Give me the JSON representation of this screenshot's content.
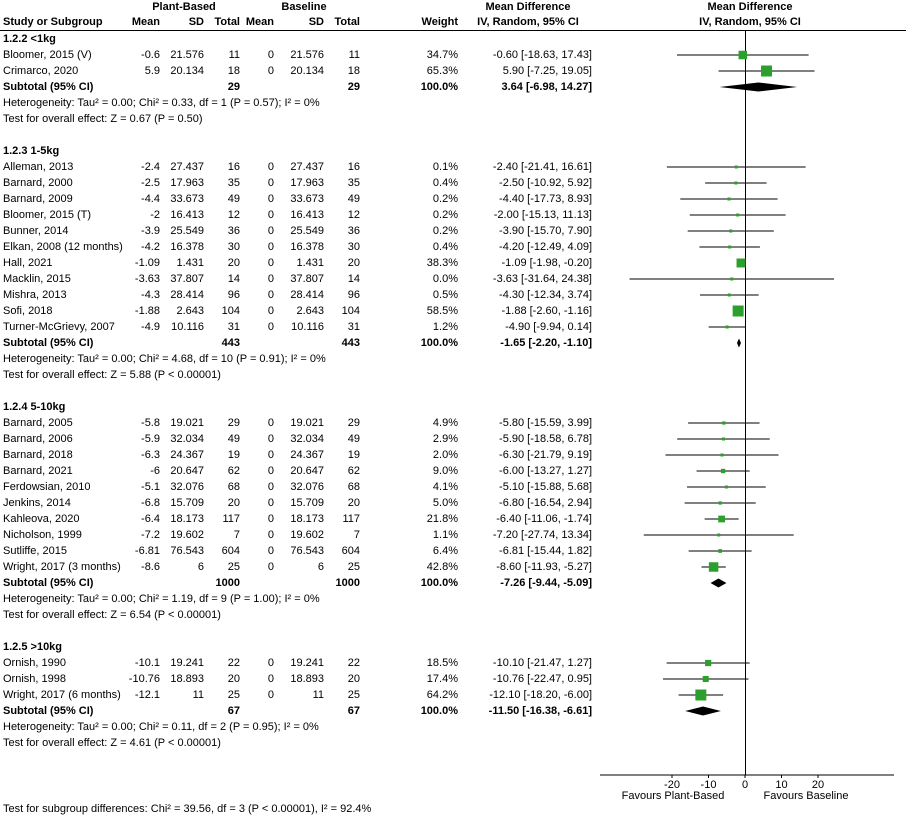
{
  "header": {
    "col_study": "Study or Subgroup",
    "group1": "Plant-Based",
    "group2": "Baseline",
    "col_mean": "Mean",
    "col_sd": "SD",
    "col_total": "Total",
    "col_weight": "Weight",
    "md_title": "Mean Difference",
    "md_sub": "IV, Random, 95% CI"
  },
  "footer": {
    "subgroup_differences": "Test for subgroup differences: Chi² = 39.56, df = 3 (P < 0.00001), I² = 92.4%"
  },
  "chart_data": {
    "type": "forest",
    "effect_measure": "Mean Difference, IV, Random, 95% CI",
    "axis": {
      "ticks": [
        -20,
        -10,
        0,
        10,
        20
      ],
      "min": -40,
      "max": 40
    },
    "favours_left": "Favours Plant-Based",
    "favours_right": "Favours Baseline",
    "colors": {
      "marker": "#2ca02c",
      "diamond": "#000000",
      "line": "#000000"
    },
    "subgroups": [
      {
        "label": "1.2.2 <1kg",
        "studies": [
          {
            "name": "Bloomer, 2015 (V)",
            "mean": "-0.6",
            "sd": "21.576",
            "total": "11",
            "b_mean": "0",
            "b_sd": "21.576",
            "b_total": "11",
            "weight": "34.7%",
            "weight_pct": 34.7,
            "md": -0.6,
            "ci_lo": -18.63,
            "ci_hi": 17.43,
            "ci_text": "-0.60 [-18.63, 17.43]"
          },
          {
            "name": "Crimarco, 2020",
            "mean": "5.9",
            "sd": "20.134",
            "total": "18",
            "b_mean": "0",
            "b_sd": "20.134",
            "b_total": "18",
            "weight": "65.3%",
            "weight_pct": 65.3,
            "md": 5.9,
            "ci_lo": -7.25,
            "ci_hi": 19.05,
            "ci_text": "5.90 [-7.25, 19.05]"
          }
        ],
        "subtotal": {
          "label": "Subtotal (95% CI)",
          "total": "29",
          "b_total": "29",
          "weight": "100.0%",
          "md": 3.64,
          "ci_lo": -6.98,
          "ci_hi": 14.27,
          "ci_text": "3.64 [-6.98, 14.27]"
        },
        "heterogeneity": "Heterogeneity: Tau² = 0.00; Chi² = 0.33, df = 1 (P = 0.57); I² = 0%",
        "overall_effect": "Test for overall effect: Z = 0.67 (P = 0.50)"
      },
      {
        "label": "1.2.3 1-5kg",
        "studies": [
          {
            "name": "Alleman, 2013",
            "mean": "-2.4",
            "sd": "27.437",
            "total": "16",
            "b_mean": "0",
            "b_sd": "27.437",
            "b_total": "16",
            "weight": "0.1%",
            "weight_pct": 0.1,
            "md": -2.4,
            "ci_lo": -21.41,
            "ci_hi": 16.61,
            "ci_text": "-2.40 [-21.41, 16.61]"
          },
          {
            "name": "Barnard, 2000",
            "mean": "-2.5",
            "sd": "17.963",
            "total": "35",
            "b_mean": "0",
            "b_sd": "17.963",
            "b_total": "35",
            "weight": "0.4%",
            "weight_pct": 0.4,
            "md": -2.5,
            "ci_lo": -10.92,
            "ci_hi": 5.92,
            "ci_text": "-2.50 [-10.92, 5.92]"
          },
          {
            "name": "Barnard, 2009",
            "mean": "-4.4",
            "sd": "33.673",
            "total": "49",
            "b_mean": "0",
            "b_sd": "33.673",
            "b_total": "49",
            "weight": "0.2%",
            "weight_pct": 0.2,
            "md": -4.4,
            "ci_lo": -17.73,
            "ci_hi": 8.93,
            "ci_text": "-4.40 [-17.73, 8.93]"
          },
          {
            "name": "Bloomer, 2015 (T)",
            "mean": "-2",
            "sd": "16.413",
            "total": "12",
            "b_mean": "0",
            "b_sd": "16.413",
            "b_total": "12",
            "weight": "0.2%",
            "weight_pct": 0.2,
            "md": -2.0,
            "ci_lo": -15.13,
            "ci_hi": 11.13,
            "ci_text": "-2.00 [-15.13, 11.13]"
          },
          {
            "name": "Bunner, 2014",
            "mean": "-3.9",
            "sd": "25.549",
            "total": "36",
            "b_mean": "0",
            "b_sd": "25.549",
            "b_total": "36",
            "weight": "0.2%",
            "weight_pct": 0.2,
            "md": -3.9,
            "ci_lo": -15.7,
            "ci_hi": 7.9,
            "ci_text": "-3.90 [-15.70, 7.90]"
          },
          {
            "name": "Elkan, 2008 (12 months)",
            "mean": "-4.2",
            "sd": "16.378",
            "total": "30",
            "b_mean": "0",
            "b_sd": "16.378",
            "b_total": "30",
            "weight": "0.4%",
            "weight_pct": 0.4,
            "md": -4.2,
            "ci_lo": -12.49,
            "ci_hi": 4.09,
            "ci_text": "-4.20 [-12.49, 4.09]"
          },
          {
            "name": "Hall, 2021",
            "mean": "-1.09",
            "sd": "1.431",
            "total": "20",
            "b_mean": "0",
            "b_sd": "1.431",
            "b_total": "20",
            "weight": "38.3%",
            "weight_pct": 38.3,
            "md": -1.09,
            "ci_lo": -1.98,
            "ci_hi": -0.2,
            "ci_text": "-1.09 [-1.98, -0.20]"
          },
          {
            "name": "Macklin, 2015",
            "mean": "-3.63",
            "sd": "37.807",
            "total": "14",
            "b_mean": "0",
            "b_sd": "37.807",
            "b_total": "14",
            "weight": "0.0%",
            "weight_pct": 0.0,
            "md": -3.63,
            "ci_lo": -31.64,
            "ci_hi": 24.38,
            "ci_text": "-3.63 [-31.64, 24.38]"
          },
          {
            "name": "Mishra, 2013",
            "mean": "-4.3",
            "sd": "28.414",
            "total": "96",
            "b_mean": "0",
            "b_sd": "28.414",
            "b_total": "96",
            "weight": "0.5%",
            "weight_pct": 0.5,
            "md": -4.3,
            "ci_lo": -12.34,
            "ci_hi": 3.74,
            "ci_text": "-4.30 [-12.34, 3.74]"
          },
          {
            "name": "Sofi, 2018",
            "mean": "-1.88",
            "sd": "2.643",
            "total": "104",
            "b_mean": "0",
            "b_sd": "2.643",
            "b_total": "104",
            "weight": "58.5%",
            "weight_pct": 58.5,
            "md": -1.88,
            "ci_lo": -2.6,
            "ci_hi": -1.16,
            "ci_text": "-1.88 [-2.60, -1.16]"
          },
          {
            "name": "Turner-McGrievy, 2007",
            "mean": "-4.9",
            "sd": "10.116",
            "total": "31",
            "b_mean": "0",
            "b_sd": "10.116",
            "b_total": "31",
            "weight": "1.2%",
            "weight_pct": 1.2,
            "md": -4.9,
            "ci_lo": -9.94,
            "ci_hi": 0.14,
            "ci_text": "-4.90 [-9.94, 0.14]"
          }
        ],
        "subtotal": {
          "label": "Subtotal (95% CI)",
          "total": "443",
          "b_total": "443",
          "weight": "100.0%",
          "md": -1.65,
          "ci_lo": -2.2,
          "ci_hi": -1.1,
          "ci_text": "-1.65 [-2.20, -1.10]"
        },
        "heterogeneity": "Heterogeneity: Tau² = 0.00; Chi² = 4.68, df = 10 (P = 0.91); I² = 0%",
        "overall_effect": "Test for overall effect: Z = 5.88 (P < 0.00001)"
      },
      {
        "label": "1.2.4 5-10kg",
        "studies": [
          {
            "name": "Barnard, 2005",
            "mean": "-5.8",
            "sd": "19.021",
            "total": "29",
            "b_mean": "0",
            "b_sd": "19.021",
            "b_total": "29",
            "weight": "4.9%",
            "weight_pct": 4.9,
            "md": -5.8,
            "ci_lo": -15.59,
            "ci_hi": 3.99,
            "ci_text": "-5.80 [-15.59, 3.99]"
          },
          {
            "name": "Barnard, 2006",
            "mean": "-5.9",
            "sd": "32.034",
            "total": "49",
            "b_mean": "0",
            "b_sd": "32.034",
            "b_total": "49",
            "weight": "2.9%",
            "weight_pct": 2.9,
            "md": -5.9,
            "ci_lo": -18.58,
            "ci_hi": 6.78,
            "ci_text": "-5.90 [-18.58, 6.78]"
          },
          {
            "name": "Barnard, 2018",
            "mean": "-6.3",
            "sd": "24.367",
            "total": "19",
            "b_mean": "0",
            "b_sd": "24.367",
            "b_total": "19",
            "weight": "2.0%",
            "weight_pct": 2.0,
            "md": -6.3,
            "ci_lo": -21.79,
            "ci_hi": 9.19,
            "ci_text": "-6.30 [-21.79, 9.19]"
          },
          {
            "name": "Barnard, 2021",
            "mean": "-6",
            "sd": "20.647",
            "total": "62",
            "b_mean": "0",
            "b_sd": "20.647",
            "b_total": "62",
            "weight": "9.0%",
            "weight_pct": 9.0,
            "md": -6.0,
            "ci_lo": -13.27,
            "ci_hi": 1.27,
            "ci_text": "-6.00 [-13.27, 1.27]"
          },
          {
            "name": "Ferdowsian, 2010",
            "mean": "-5.1",
            "sd": "32.076",
            "total": "68",
            "b_mean": "0",
            "b_sd": "32.076",
            "b_total": "68",
            "weight": "4.1%",
            "weight_pct": 4.1,
            "md": -5.1,
            "ci_lo": -15.88,
            "ci_hi": 5.68,
            "ci_text": "-5.10 [-15.88, 5.68]"
          },
          {
            "name": "Jenkins, 2014",
            "mean": "-6.8",
            "sd": "15.709",
            "total": "20",
            "b_mean": "0",
            "b_sd": "15.709",
            "b_total": "20",
            "weight": "5.0%",
            "weight_pct": 5.0,
            "md": -6.8,
            "ci_lo": -16.54,
            "ci_hi": 2.94,
            "ci_text": "-6.80 [-16.54, 2.94]"
          },
          {
            "name": "Kahleova, 2020",
            "mean": "-6.4",
            "sd": "18.173",
            "total": "117",
            "b_mean": "0",
            "b_sd": "18.173",
            "b_total": "117",
            "weight": "21.8%",
            "weight_pct": 21.8,
            "md": -6.4,
            "ci_lo": -11.06,
            "ci_hi": -1.74,
            "ci_text": "-6.40 [-11.06, -1.74]"
          },
          {
            "name": "Nicholson, 1999",
            "mean": "-7.2",
            "sd": "19.602",
            "total": "7",
            "b_mean": "0",
            "b_sd": "19.602",
            "b_total": "7",
            "weight": "1.1%",
            "weight_pct": 1.1,
            "md": -7.2,
            "ci_lo": -27.74,
            "ci_hi": 13.34,
            "ci_text": "-7.20 [-27.74, 13.34]"
          },
          {
            "name": "Sutliffe, 2015",
            "mean": "-6.81",
            "sd": "76.543",
            "total": "604",
            "b_mean": "0",
            "b_sd": "76.543",
            "b_total": "604",
            "weight": "6.4%",
            "weight_pct": 6.4,
            "md": -6.81,
            "ci_lo": -15.44,
            "ci_hi": 1.82,
            "ci_text": "-6.81 [-15.44, 1.82]"
          },
          {
            "name": "Wright, 2017 (3 months)",
            "mean": "-8.6",
            "sd": "6",
            "total": "25",
            "b_mean": "0",
            "b_sd": "6",
            "b_total": "25",
            "weight": "42.8%",
            "weight_pct": 42.8,
            "md": -8.6,
            "ci_lo": -11.93,
            "ci_hi": -5.27,
            "ci_text": "-8.60 [-11.93, -5.27]"
          }
        ],
        "subtotal": {
          "label": "Subtotal (95% CI)",
          "total": "1000",
          "b_total": "1000",
          "weight": "100.0%",
          "md": -7.26,
          "ci_lo": -9.44,
          "ci_hi": -5.09,
          "ci_text": "-7.26 [-9.44, -5.09]"
        },
        "heterogeneity": "Heterogeneity: Tau² = 0.00; Chi² = 1.19, df = 9 (P = 1.00); I² = 0%",
        "overall_effect": "Test for overall effect: Z = 6.54 (P < 0.00001)"
      },
      {
        "label": "1.2.5 >10kg",
        "studies": [
          {
            "name": "Ornish, 1990",
            "mean": "-10.1",
            "sd": "19.241",
            "total": "22",
            "b_mean": "0",
            "b_sd": "19.241",
            "b_total": "22",
            "weight": "18.5%",
            "weight_pct": 18.5,
            "md": -10.1,
            "ci_lo": -21.47,
            "ci_hi": 1.27,
            "ci_text": "-10.10 [-21.47, 1.27]"
          },
          {
            "name": "Ornish, 1998",
            "mean": "-10.76",
            "sd": "18.893",
            "total": "20",
            "b_mean": "0",
            "b_sd": "18.893",
            "b_total": "20",
            "weight": "17.4%",
            "weight_pct": 17.4,
            "md": -10.76,
            "ci_lo": -22.47,
            "ci_hi": 0.95,
            "ci_text": "-10.76 [-22.47, 0.95]"
          },
          {
            "name": "Wright, 2017 (6 months)",
            "mean": "-12.1",
            "sd": "11",
            "total": "25",
            "b_mean": "0",
            "b_sd": "11",
            "b_total": "25",
            "weight": "64.2%",
            "weight_pct": 64.2,
            "md": -12.1,
            "ci_lo": -18.2,
            "ci_hi": -6.0,
            "ci_text": "-12.10 [-18.20, -6.00]"
          }
        ],
        "subtotal": {
          "label": "Subtotal (95% CI)",
          "total": "67",
          "b_total": "67",
          "weight": "100.0%",
          "md": -11.5,
          "ci_lo": -16.38,
          "ci_hi": -6.61,
          "ci_text": "-11.50 [-16.38, -6.61]"
        },
        "heterogeneity": "Heterogeneity: Tau² = 0.00; Chi² = 0.11, df = 2 (P = 0.95); I² = 0%",
        "overall_effect": "Test for overall effect: Z = 4.61 (P < 0.00001)"
      }
    ]
  }
}
